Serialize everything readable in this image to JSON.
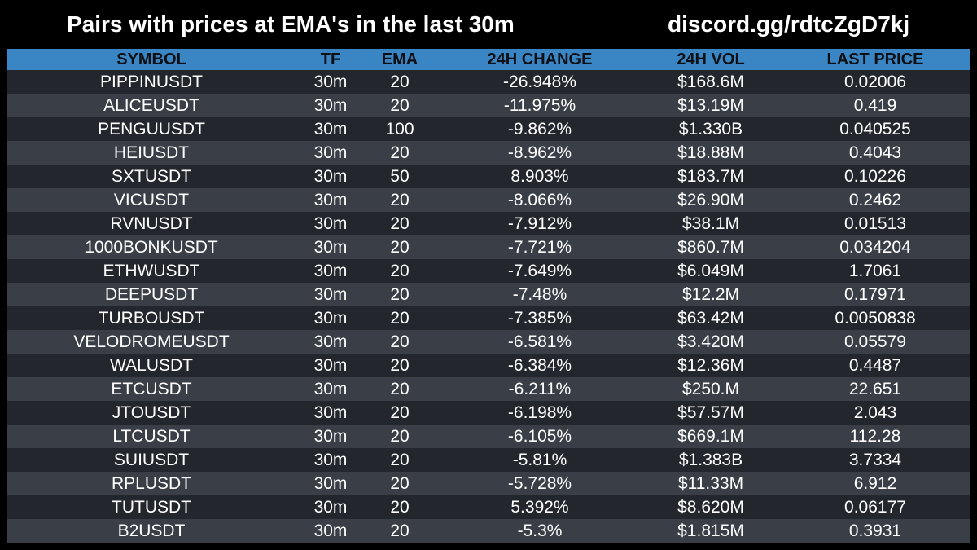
{
  "header": {
    "title": "Pairs with prices at EMA's in the last 30m",
    "invite": "discord.gg/rdtcZgD7kj"
  },
  "colors": {
    "background": "#000000",
    "header_row": "#3a86c4",
    "row_dark": "#23272d",
    "row_light": "#3a3f47",
    "text": "#ffffff"
  },
  "table": {
    "columns": [
      "SYMBOL",
      "TF",
      "EMA",
      "24H CHANGE",
      "24H VOL",
      "LAST PRICE"
    ],
    "rows": [
      {
        "symbol": "PIPPINUSDT",
        "tf": "30m",
        "ema": "20",
        "change": "-26.948%",
        "vol": "$168.6M",
        "price": "0.02006"
      },
      {
        "symbol": "ALICEUSDT",
        "tf": "30m",
        "ema": "20",
        "change": "-11.975%",
        "vol": "$13.19M",
        "price": "0.419"
      },
      {
        "symbol": "PENGUUSDT",
        "tf": "30m",
        "ema": "100",
        "change": "-9.862%",
        "vol": "$1.330B",
        "price": "0.040525"
      },
      {
        "symbol": "HEIUSDT",
        "tf": "30m",
        "ema": "20",
        "change": "-8.962%",
        "vol": "$18.88M",
        "price": "0.4043"
      },
      {
        "symbol": "SXTUSDT",
        "tf": "30m",
        "ema": "50",
        "change": "8.903%",
        "vol": "$183.7M",
        "price": "0.10226"
      },
      {
        "symbol": "VICUSDT",
        "tf": "30m",
        "ema": "20",
        "change": "-8.066%",
        "vol": "$26.90M",
        "price": "0.2462"
      },
      {
        "symbol": "RVNUSDT",
        "tf": "30m",
        "ema": "20",
        "change": "-7.912%",
        "vol": "$38.1M",
        "price": "0.01513"
      },
      {
        "symbol": "1000BONKUSDT",
        "tf": "30m",
        "ema": "20",
        "change": "-7.721%",
        "vol": "$860.7M",
        "price": "0.034204"
      },
      {
        "symbol": "ETHWUSDT",
        "tf": "30m",
        "ema": "20",
        "change": "-7.649%",
        "vol": "$6.049M",
        "price": "1.7061"
      },
      {
        "symbol": "DEEPUSDT",
        "tf": "30m",
        "ema": "20",
        "change": "-7.48%",
        "vol": "$12.2M",
        "price": "0.17971"
      },
      {
        "symbol": "TURBOUSDT",
        "tf": "30m",
        "ema": "20",
        "change": "-7.385%",
        "vol": "$63.42M",
        "price": "0.0050838"
      },
      {
        "symbol": "VELODROMEUSDT",
        "tf": "30m",
        "ema": "20",
        "change": "-6.581%",
        "vol": "$3.420M",
        "price": "0.05579"
      },
      {
        "symbol": "WALUSDT",
        "tf": "30m",
        "ema": "20",
        "change": "-6.384%",
        "vol": "$12.36M",
        "price": "0.4487"
      },
      {
        "symbol": "ETCUSDT",
        "tf": "30m",
        "ema": "20",
        "change": "-6.211%",
        "vol": "$250.M",
        "price": "22.651"
      },
      {
        "symbol": "JTOUSDT",
        "tf": "30m",
        "ema": "20",
        "change": "-6.198%",
        "vol": "$57.57M",
        "price": "2.043"
      },
      {
        "symbol": "LTCUSDT",
        "tf": "30m",
        "ema": "20",
        "change": "-6.105%",
        "vol": "$669.1M",
        "price": "112.28"
      },
      {
        "symbol": "SUIUSDT",
        "tf": "30m",
        "ema": "20",
        "change": "-5.81%",
        "vol": "$1.383B",
        "price": "3.7334"
      },
      {
        "symbol": "RPLUSDT",
        "tf": "30m",
        "ema": "20",
        "change": "-5.728%",
        "vol": "$11.33M",
        "price": "6.912"
      },
      {
        "symbol": "TUTUSDT",
        "tf": "30m",
        "ema": "20",
        "change": "5.392%",
        "vol": "$8.620M",
        "price": "0.06177"
      },
      {
        "symbol": "B2USDT",
        "tf": "30m",
        "ema": "20",
        "change": "-5.3%",
        "vol": "$1.815M",
        "price": "0.3931"
      }
    ]
  }
}
